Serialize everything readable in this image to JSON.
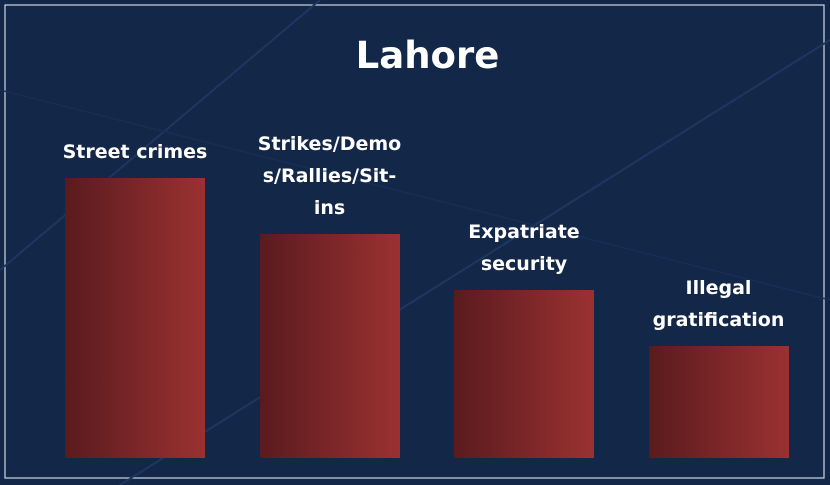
{
  "chart_data": {
    "type": "bar",
    "title": "Lahore",
    "categories": [
      "Street crimes",
      "Strikes/Demos/Rallies/Sit-ins",
      "Expatriate security",
      "Illegal gratification"
    ],
    "values": [
      5,
      4,
      3,
      2
    ],
    "colors": [
      "#5a1b1e",
      "#9b3131"
    ],
    "ylim": [
      0,
      5
    ]
  }
}
